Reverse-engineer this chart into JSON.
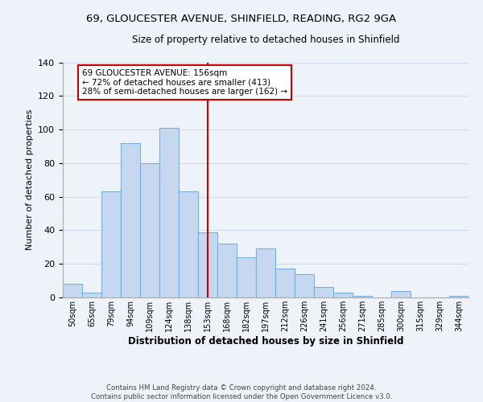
{
  "title_line1": "69, GLOUCESTER AVENUE, SHINFIELD, READING, RG2 9GA",
  "title_line2": "Size of property relative to detached houses in Shinfield",
  "xlabel": "Distribution of detached houses by size in Shinfield",
  "ylabel": "Number of detached properties",
  "categories": [
    "50sqm",
    "65sqm",
    "79sqm",
    "94sqm",
    "109sqm",
    "124sqm",
    "138sqm",
    "153sqm",
    "168sqm",
    "182sqm",
    "197sqm",
    "212sqm",
    "226sqm",
    "241sqm",
    "256sqm",
    "271sqm",
    "285sqm",
    "300sqm",
    "315sqm",
    "329sqm",
    "344sqm"
  ],
  "values": [
    8,
    3,
    63,
    92,
    80,
    101,
    63,
    39,
    32,
    24,
    29,
    17,
    14,
    6,
    3,
    1,
    0,
    4,
    0,
    0,
    1
  ],
  "bar_color": "#c5d8f0",
  "bar_edge_color": "#7aaedb",
  "vline_x": 7,
  "vline_color": "#cc0000",
  "annotation_text_line1": "69 GLOUCESTER AVENUE: 156sqm",
  "annotation_text_line2": "← 72% of detached houses are smaller (413)",
  "annotation_text_line3": "28% of semi-detached houses are larger (162) →",
  "annotation_box_edge_color": "#cc0000",
  "annotation_box_face_color": "#ffffff",
  "footer_line1": "Contains HM Land Registry data © Crown copyright and database right 2024.",
  "footer_line2": "Contains public sector information licensed under the Open Government Licence v3.0.",
  "ylim": [
    0,
    140
  ],
  "background_color": "#eef3fa",
  "grid_color": "#d0dcea",
  "spine_color": "#aaaaaa"
}
